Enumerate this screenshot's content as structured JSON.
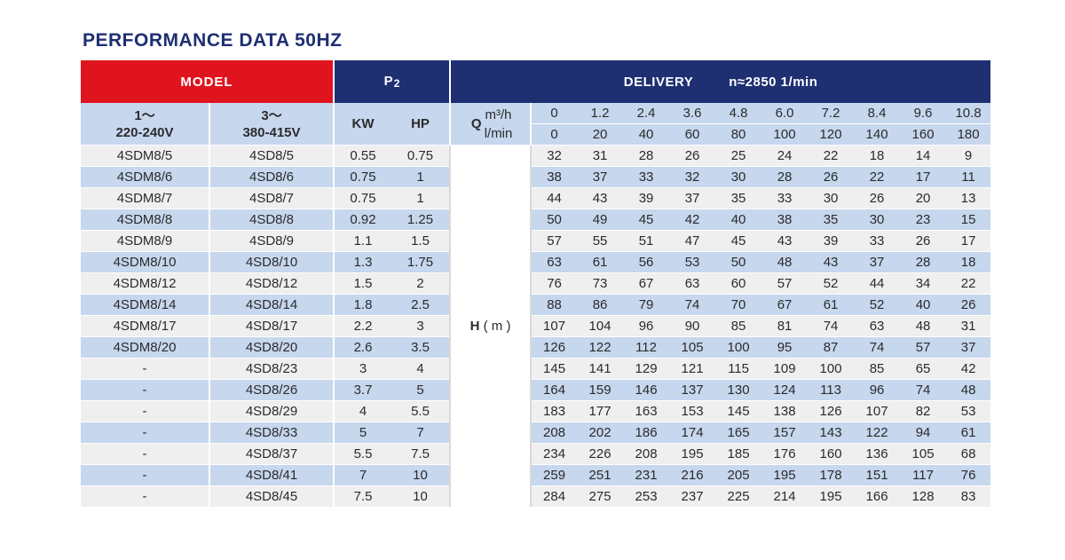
{
  "title": "PERFORMANCE DATA 50HZ",
  "header": {
    "model": "MODEL",
    "p2": "P",
    "p2_sub": "2",
    "delivery": "DELIVERY",
    "speed": "n≈2850 1/min"
  },
  "subheader": {
    "col1_line1": "1～",
    "col1_line2": "220-240V",
    "col2_line1": "3～",
    "col2_line2": "380-415V",
    "kw": "KW",
    "hp": "HP",
    "q": "Q",
    "unit_m3h": "m³/h",
    "unit_lmin": "l/min",
    "h_label": "H",
    "h_unit": "( m )"
  },
  "flow_m3h": [
    "0",
    "1.2",
    "2.4",
    "3.6",
    "4.8",
    "6.0",
    "7.2",
    "8.4",
    "9.6",
    "10.8"
  ],
  "flow_lmin": [
    "0",
    "20",
    "40",
    "60",
    "80",
    "100",
    "120",
    "140",
    "160",
    "180"
  ],
  "rows": [
    {
      "m1": "4SDM8/5",
      "m3": "4SD8/5",
      "kw": "0.55",
      "hp": "0.75",
      "h": [
        "32",
        "31",
        "28",
        "26",
        "25",
        "24",
        "22",
        "18",
        "14",
        "9"
      ]
    },
    {
      "m1": "4SDM8/6",
      "m3": "4SD8/6",
      "kw": "0.75",
      "hp": "1",
      "h": [
        "38",
        "37",
        "33",
        "32",
        "30",
        "28",
        "26",
        "22",
        "17",
        "11"
      ]
    },
    {
      "m1": "4SDM8/7",
      "m3": "4SD8/7",
      "kw": "0.75",
      "hp": "1",
      "h": [
        "44",
        "43",
        "39",
        "37",
        "35",
        "33",
        "30",
        "26",
        "20",
        "13"
      ]
    },
    {
      "m1": "4SDM8/8",
      "m3": "4SD8/8",
      "kw": "0.92",
      "hp": "1.25",
      "h": [
        "50",
        "49",
        "45",
        "42",
        "40",
        "38",
        "35",
        "30",
        "23",
        "15"
      ]
    },
    {
      "m1": "4SDM8/9",
      "m3": "4SD8/9",
      "kw": "1.1",
      "hp": "1.5",
      "h": [
        "57",
        "55",
        "51",
        "47",
        "45",
        "43",
        "39",
        "33",
        "26",
        "17"
      ]
    },
    {
      "m1": "4SDM8/10",
      "m3": "4SD8/10",
      "kw": "1.3",
      "hp": "1.75",
      "h": [
        "63",
        "61",
        "56",
        "53",
        "50",
        "48",
        "43",
        "37",
        "28",
        "18"
      ]
    },
    {
      "m1": "4SDM8/12",
      "m3": "4SD8/12",
      "kw": "1.5",
      "hp": "2",
      "h": [
        "76",
        "73",
        "67",
        "63",
        "60",
        "57",
        "52",
        "44",
        "34",
        "22"
      ]
    },
    {
      "m1": "4SDM8/14",
      "m3": "4SD8/14",
      "kw": "1.8",
      "hp": "2.5",
      "h": [
        "88",
        "86",
        "79",
        "74",
        "70",
        "67",
        "61",
        "52",
        "40",
        "26"
      ]
    },
    {
      "m1": "4SDM8/17",
      "m3": "4SD8/17",
      "kw": "2.2",
      "hp": "3",
      "h": [
        "107",
        "104",
        "96",
        "90",
        "85",
        "81",
        "74",
        "63",
        "48",
        "31"
      ]
    },
    {
      "m1": "4SDM8/20",
      "m3": "4SD8/20",
      "kw": "2.6",
      "hp": "3.5",
      "h": [
        "126",
        "122",
        "112",
        "105",
        "100",
        "95",
        "87",
        "74",
        "57",
        "37"
      ]
    },
    {
      "m1": "-",
      "m3": "4SD8/23",
      "kw": "3",
      "hp": "4",
      "h": [
        "145",
        "141",
        "129",
        "121",
        "115",
        "109",
        "100",
        "85",
        "65",
        "42"
      ]
    },
    {
      "m1": "-",
      "m3": "4SD8/26",
      "kw": "3.7",
      "hp": "5",
      "h": [
        "164",
        "159",
        "146",
        "137",
        "130",
        "124",
        "113",
        "96",
        "74",
        "48"
      ]
    },
    {
      "m1": "-",
      "m3": "4SD8/29",
      "kw": "4",
      "hp": "5.5",
      "h": [
        "183",
        "177",
        "163",
        "153",
        "145",
        "138",
        "126",
        "107",
        "82",
        "53"
      ]
    },
    {
      "m1": "-",
      "m3": "4SD8/33",
      "kw": "5",
      "hp": "7",
      "h": [
        "208",
        "202",
        "186",
        "174",
        "165",
        "157",
        "143",
        "122",
        "94",
        "61"
      ]
    },
    {
      "m1": "-",
      "m3": "4SD8/37",
      "kw": "5.5",
      "hp": "7.5",
      "h": [
        "234",
        "226",
        "208",
        "195",
        "185",
        "176",
        "160",
        "136",
        "105",
        "68"
      ]
    },
    {
      "m1": "-",
      "m3": "4SD8/41",
      "kw": "7",
      "hp": "10",
      "h": [
        "259",
        "251",
        "231",
        "216",
        "205",
        "195",
        "178",
        "151",
        "117",
        "76"
      ]
    },
    {
      "m1": "-",
      "m3": "4SD8/45",
      "kw": "7.5",
      "hp": "10",
      "h": [
        "284",
        "275",
        "253",
        "237",
        "225",
        "214",
        "195",
        "166",
        "128",
        "83"
      ]
    }
  ],
  "colors": {
    "navy": "#1e2f72",
    "red": "#e0141e",
    "light_blue": "#c6d7ee",
    "light_gray": "#efefef"
  }
}
